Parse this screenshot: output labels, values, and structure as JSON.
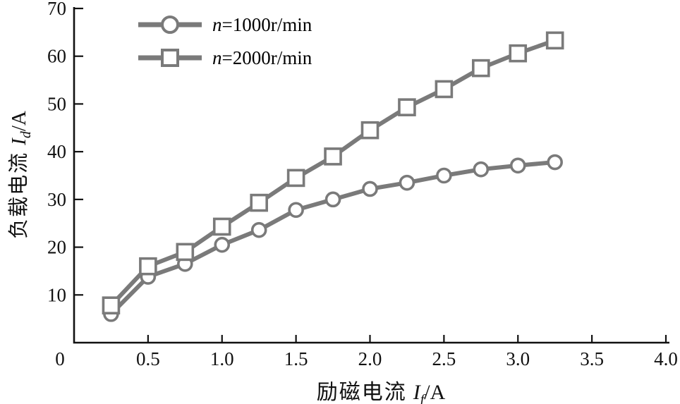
{
  "chart_data": {
    "type": "line",
    "title": "",
    "xlabel": {
      "text": "励磁电流",
      "var": "I",
      "sub": "f",
      "unit": "/A"
    },
    "ylabel": {
      "text": "负载电流",
      "var": "I",
      "sub": "d",
      "unit": "/A"
    },
    "xlim": [
      0,
      4.0
    ],
    "ylim": [
      0,
      70
    ],
    "grid": false,
    "legend_position": "top-left-inside",
    "line_color": "#7a7a7a",
    "axis_color": "#111111",
    "marker_fill": "#ffffff",
    "x_ticks": [
      {
        "v": 0,
        "label": "0"
      },
      {
        "v": 0.5,
        "label": "0.5"
      },
      {
        "v": 1.0,
        "label": "1.0"
      },
      {
        "v": 1.5,
        "label": "1.5"
      },
      {
        "v": 2.0,
        "label": "2.0"
      },
      {
        "v": 2.5,
        "label": "2.5"
      },
      {
        "v": 3.0,
        "label": "3.0"
      },
      {
        "v": 3.5,
        "label": "3.5"
      },
      {
        "v": 4.0,
        "label": "4.0"
      }
    ],
    "y_ticks": [
      {
        "v": 10,
        "label": "10"
      },
      {
        "v": 20,
        "label": "20"
      },
      {
        "v": 30,
        "label": "30"
      },
      {
        "v": 40,
        "label": "40"
      },
      {
        "v": 50,
        "label": "50"
      },
      {
        "v": 60,
        "label": "60"
      },
      {
        "v": 70,
        "label": "70"
      }
    ],
    "x": [
      0.25,
      0.5,
      0.75,
      1.0,
      1.25,
      1.5,
      1.75,
      2.0,
      2.25,
      2.5,
      2.75,
      3.0,
      3.25
    ],
    "series": [
      {
        "id": "n1000",
        "name": "n=1000r/min",
        "legend_var": "n",
        "legend_rest": "=1000r/min",
        "marker": "circle",
        "values": [
          6,
          13.8,
          16.5,
          20.5,
          23.6,
          27.8,
          30,
          32.2,
          33.5,
          35,
          36.3,
          37.1,
          37.8
        ]
      },
      {
        "id": "n2000",
        "name": "n=2000r/min",
        "legend_var": "n",
        "legend_rest": "=2000r/min",
        "marker": "square",
        "values": [
          7.8,
          16,
          19,
          24.3,
          29.3,
          34.5,
          39,
          44.5,
          49.3,
          53.1,
          57.5,
          60.6,
          63.3
        ]
      }
    ]
  }
}
